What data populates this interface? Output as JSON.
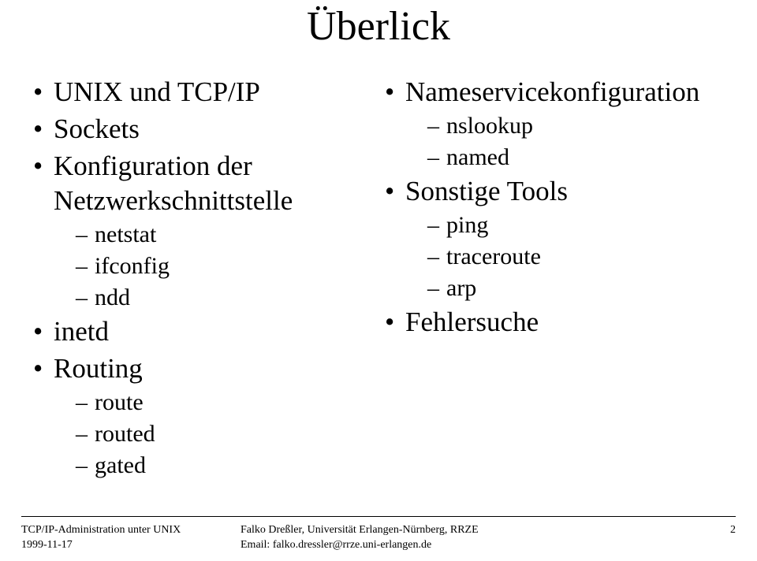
{
  "title": "Überlick",
  "left": {
    "items": [
      {
        "label": "UNIX und TCP/IP"
      },
      {
        "label": "Sockets"
      },
      {
        "label": "Konfiguration der Netzwerkschnittstelle",
        "sub": [
          "netstat",
          "ifconfig",
          "ndd"
        ]
      },
      {
        "label": "inetd"
      },
      {
        "label": "Routing",
        "sub": [
          "route",
          "routed",
          "gated"
        ]
      }
    ]
  },
  "right": {
    "items": [
      {
        "label": "Nameservicekonfiguration",
        "sub": [
          "nslookup",
          "named"
        ]
      },
      {
        "label": "Sonstige Tools",
        "sub": [
          "ping",
          "traceroute",
          "arp"
        ]
      },
      {
        "label": "Fehlersuche"
      }
    ]
  },
  "footer": {
    "left_line1": "TCP/IP-Administration unter UNIX",
    "left_line2": "1999-11-17",
    "center_line1": "Falko Dreßler, Universität Erlangen-Nürnberg, RRZE",
    "center_line2": "Email: falko.dressler@rrze.uni-erlangen.de",
    "page": "2"
  }
}
